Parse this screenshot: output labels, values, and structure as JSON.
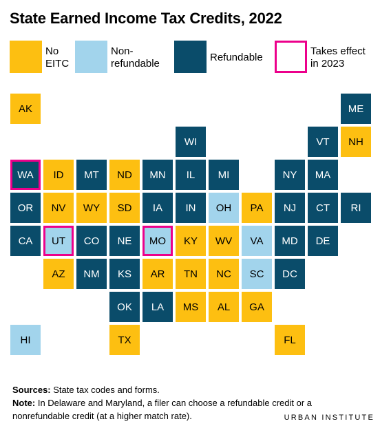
{
  "title": "State Earned Income Tax Credits, 2022",
  "colors": {
    "no_eitc": "#fdbf11",
    "nonrefundable": "#a2d4ec",
    "refundable": "#0a4c6a",
    "takes_effect_2023": "#ec008b"
  },
  "legend": {
    "no_eitc": [
      "No",
      "EITC"
    ],
    "nonrefundable": [
      "Non-",
      "refundable"
    ],
    "refundable": [
      "Refundable"
    ],
    "takes_effect_2023": [
      "Takes effect",
      "in 2023"
    ]
  },
  "states": [
    {
      "abbr": "AK",
      "category": "no"
    },
    {
      "abbr": "ME",
      "category": "ref"
    },
    {
      "abbr": "WI",
      "category": "ref"
    },
    {
      "abbr": "VT",
      "category": "ref"
    },
    {
      "abbr": "NH",
      "category": "no"
    },
    {
      "abbr": "WA",
      "category": "ref",
      "takes_effect_2023": true
    },
    {
      "abbr": "ID",
      "category": "no"
    },
    {
      "abbr": "MT",
      "category": "ref"
    },
    {
      "abbr": "ND",
      "category": "no"
    },
    {
      "abbr": "MN",
      "category": "ref"
    },
    {
      "abbr": "IL",
      "category": "ref"
    },
    {
      "abbr": "MI",
      "category": "ref"
    },
    {
      "abbr": "NY",
      "category": "ref"
    },
    {
      "abbr": "MA",
      "category": "ref"
    },
    {
      "abbr": "OR",
      "category": "ref"
    },
    {
      "abbr": "NV",
      "category": "no"
    },
    {
      "abbr": "WY",
      "category": "no"
    },
    {
      "abbr": "SD",
      "category": "no"
    },
    {
      "abbr": "IA",
      "category": "ref"
    },
    {
      "abbr": "IN",
      "category": "ref"
    },
    {
      "abbr": "OH",
      "category": "non"
    },
    {
      "abbr": "PA",
      "category": "no"
    },
    {
      "abbr": "NJ",
      "category": "ref"
    },
    {
      "abbr": "CT",
      "category": "ref"
    },
    {
      "abbr": "RI",
      "category": "ref"
    },
    {
      "abbr": "CA",
      "category": "ref"
    },
    {
      "abbr": "UT",
      "category": "non",
      "takes_effect_2023": true
    },
    {
      "abbr": "CO",
      "category": "ref"
    },
    {
      "abbr": "NE",
      "category": "ref"
    },
    {
      "abbr": "MO",
      "category": "non",
      "takes_effect_2023": true
    },
    {
      "abbr": "KY",
      "category": "no"
    },
    {
      "abbr": "WV",
      "category": "no"
    },
    {
      "abbr": "VA",
      "category": "non"
    },
    {
      "abbr": "MD",
      "category": "ref"
    },
    {
      "abbr": "DE",
      "category": "ref"
    },
    {
      "abbr": "AZ",
      "category": "no"
    },
    {
      "abbr": "NM",
      "category": "ref"
    },
    {
      "abbr": "KS",
      "category": "ref"
    },
    {
      "abbr": "AR",
      "category": "no"
    },
    {
      "abbr": "TN",
      "category": "no"
    },
    {
      "abbr": "NC",
      "category": "no"
    },
    {
      "abbr": "SC",
      "category": "non"
    },
    {
      "abbr": "DC",
      "category": "ref"
    },
    {
      "abbr": "OK",
      "category": "ref"
    },
    {
      "abbr": "LA",
      "category": "ref"
    },
    {
      "abbr": "MS",
      "category": "no"
    },
    {
      "abbr": "AL",
      "category": "no"
    },
    {
      "abbr": "GA",
      "category": "no"
    },
    {
      "abbr": "HI",
      "category": "non"
    },
    {
      "abbr": "TX",
      "category": "no"
    },
    {
      "abbr": "FL",
      "category": "no"
    }
  ],
  "footer": {
    "sources_label": "Sources:",
    "sources_text": "State tax codes and forms.",
    "note_label": "Note:",
    "note_line1": "In Delaware and Maryland, a filer can choose a refundable credit or a",
    "note_line2": "nonrefundable credit (at a higher match rate)."
  },
  "brand": {
    "part1": "URBAN",
    "part2": "INSTITUTE"
  }
}
